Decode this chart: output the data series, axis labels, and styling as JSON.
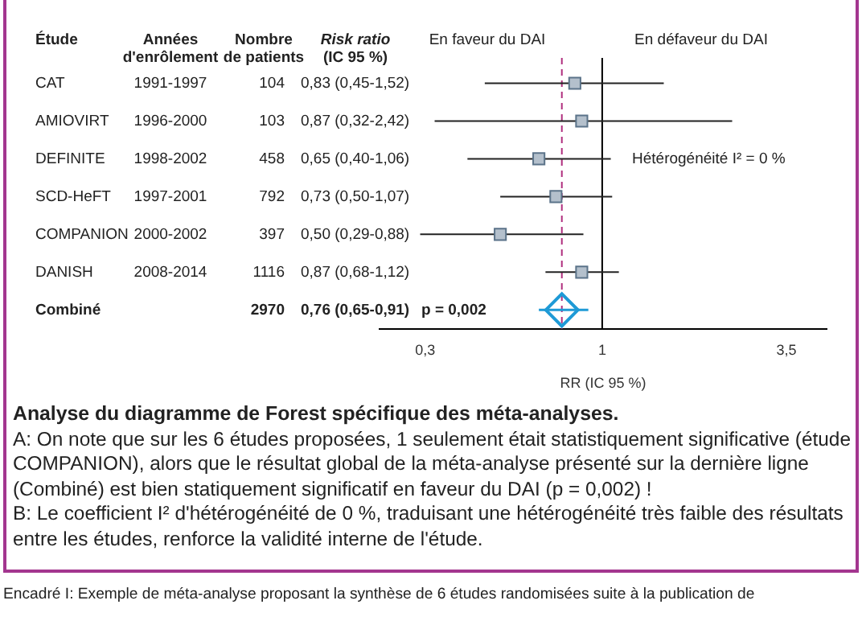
{
  "chart_data": {
    "type": "scatter",
    "orientation": "horizontal",
    "log": "x",
    "grid": false,
    "legend": false,
    "xlabel": "RR (IC 95 %)",
    "categories": [
      null,
      null,
      null,
      null,
      null,
      null,
      null
    ],
    "xlim": [
      0.22,
      4.6
    ],
    "xticks": [
      {
        "value": 0.3,
        "label": "0,3"
      },
      1,
      {
        "value": 3.5,
        "label": "3,5"
      }
    ],
    "series": [
      {
        "color": "#b4c0cc",
        "marker": "square",
        "values": [
          0.83,
          0.87,
          0.65,
          0.73,
          0.5,
          0.87,
          null
        ],
        "errors": [
          [
            0.45,
            1.52
          ],
          [
            0.32,
            2.42
          ],
          [
            0.4,
            1.06
          ],
          [
            0.5,
            1.07
          ],
          [
            0.29,
            0.88
          ],
          [
            0.68,
            1.12
          ],
          null
        ]
      },
      {
        "color": "#1e9ad6",
        "marker": "diamond",
        "values": [
          null,
          null,
          null,
          null,
          null,
          null,
          0.76
        ],
        "errors": [
          null,
          null,
          null,
          null,
          null,
          null,
          [
            0.65,
            0.91
          ]
        ]
      }
    ],
    "ref_lines": [
      {
        "axis": "x",
        "value": 1,
        "color": "#000000",
        "line_style": "solid"
      },
      {
        "axis": "x",
        "value": 0.76,
        "color": "#b0307f",
        "line_style": "dashed"
      }
    ],
    "annotations": [
      "1991-1997",
      "104",
      "0,83 (0,45-1,52)",
      "1996-2000",
      "103",
      "0,87 (0,32-2,42)",
      "1998-2002",
      "458",
      "0,65 (0,40-1,06)",
      "1997-2001",
      "792",
      "0,73 (0,50-1,07)",
      "2000-2002",
      "397",
      "0,50 (0,29-0,88)",
      "2008-2014",
      "1116",
      "0,87 (0,68-1,12)",
      "2970",
      "0,76 (0,65-0,91)",
      "Étude",
      "Années\nd'enrôlement",
      "Nombre\nde patients",
      "Risk ratio\n(IC 95 %)",
      "En faveur du DAI",
      "En défaveur du DAI",
      "Hétérogénéité I² = 0 %",
      "p = 0,002",
      "Analyse du diagramme de Forest spécifique des méta-analyses.",
      "A: On note que sur les 6 études proposées, 1 seulement était statistiquement significative (étude COMPANION), alors que le résultat global de la méta-analyse présenté sur la dernière ligne (Combiné) est bien statiquement significatif en faveur du DAI (p = 0,002) !",
      "B: Le coefficient I² d'hétérogénéité de 0 %, traduisant une hétérogénéité très faible des résultats entre les études, renforce la validité interne de l'étude.",
      "Encadré I: Exemple de méta-analyse proposant la synthèse de 6 études randomisées suite à la publication de",
      "CAT",
      "AMIOVIRT",
      "DEFINITE",
      "SCD-HeFT",
      "COMPANION",
      "DANISH",
      "Combiné"
    ]
  }
}
